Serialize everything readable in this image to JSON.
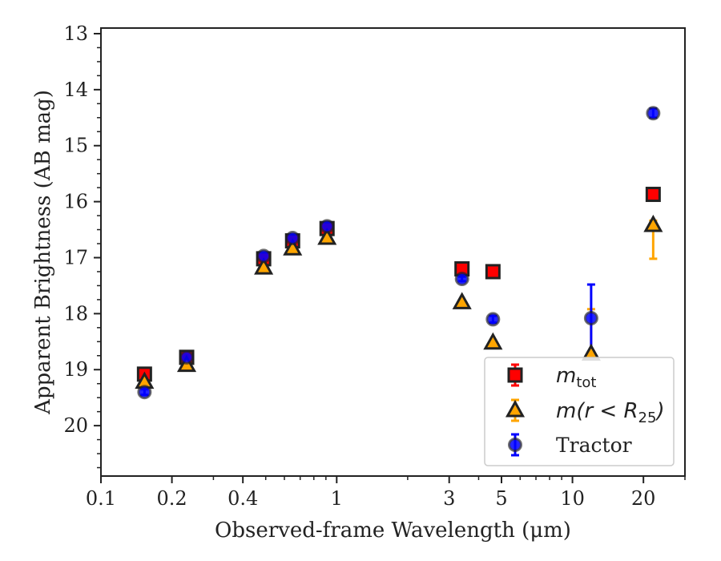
{
  "chart_data": {
    "type": "scatter",
    "title": "",
    "xlabel": "Observed-frame Wavelength (μm)",
    "ylabel": "Apparent Brightness (AB mag)",
    "x_scale": "log",
    "xlim": [
      0.1,
      30
    ],
    "ylim": [
      20.9,
      12.9
    ],
    "y_inverted": true,
    "grid": false,
    "legend_position": "bottom-right",
    "x_ticks": [
      0.1,
      0.2,
      0.4,
      1,
      3,
      5,
      10,
      20
    ],
    "x_tick_labels": [
      "0.1",
      "0.2",
      "0.4",
      "1",
      "3",
      "5",
      "10",
      "20"
    ],
    "y_ticks": [
      13,
      14,
      15,
      16,
      17,
      18,
      19,
      20
    ],
    "y_tick_labels": [
      "13",
      "14",
      "15",
      "16",
      "17",
      "18",
      "19",
      "20"
    ],
    "series": [
      {
        "name_parts": [
          "m",
          "tot"
        ],
        "marker": "square",
        "color": "#ff0000",
        "edge_color": "#222222",
        "x": [
          0.153,
          0.231,
          0.49,
          0.65,
          0.91,
          3.4,
          4.6,
          22.0
        ],
        "y": [
          19.08,
          18.78,
          17.02,
          16.7,
          16.48,
          17.2,
          17.25,
          15.87
        ],
        "yerr": [
          0.05,
          0.04,
          0.03,
          0.03,
          0.03,
          0.03,
          0.03,
          0.04
        ]
      },
      {
        "name_parts": [
          "m(r < R",
          "25",
          ")"
        ],
        "marker": "triangle",
        "color": "#ffa500",
        "edge_color": "#222222",
        "x": [
          0.153,
          0.231,
          0.49,
          0.65,
          0.91,
          3.4,
          4.6,
          12.0,
          22.0
        ],
        "y": [
          19.22,
          18.92,
          17.18,
          16.84,
          16.65,
          17.8,
          18.52,
          18.72,
          16.42
        ],
        "yerr_low": [
          0.04,
          0.04,
          0.03,
          0.03,
          0.03,
          0.03,
          0.03,
          0.05,
          0.6
        ],
        "yerr_high": [
          0.04,
          0.04,
          0.03,
          0.03,
          0.03,
          0.03,
          0.03,
          0.8,
          0.08
        ]
      },
      {
        "name": "Tractor",
        "marker": "circle",
        "color": "#0000ff",
        "edge_color": "#222222",
        "x": [
          0.153,
          0.231,
          0.49,
          0.65,
          0.91,
          3.4,
          4.6,
          12.0,
          22.0
        ],
        "y": [
          19.4,
          18.78,
          16.97,
          16.65,
          16.44,
          17.38,
          18.1,
          18.08,
          14.42
        ],
        "yerr": [
          0.05,
          0.05,
          0.04,
          0.04,
          0.04,
          0.04,
          0.06,
          0.6,
          0.08
        ]
      }
    ]
  }
}
